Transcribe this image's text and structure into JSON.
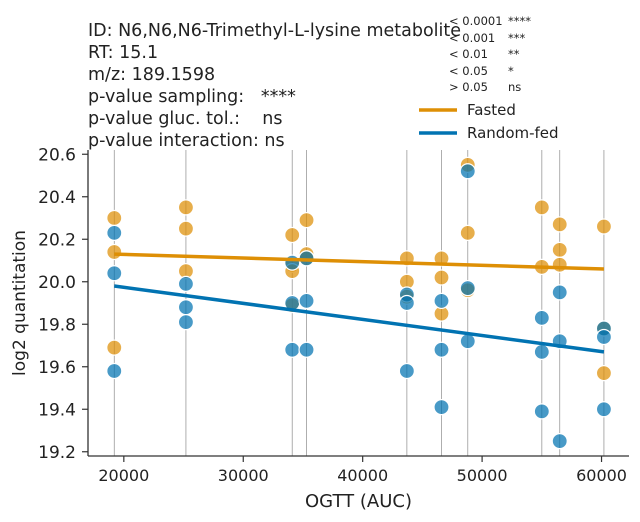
{
  "chart_data": {
    "type": "scatter",
    "info_lines": [
      "ID: N6,N6,N6-Trimethyl-L-lysine metabolite",
      "RT: 15.1",
      "m/z: 189.1598",
      "p-value sampling:   ****",
      "p-value gluc. tol.:    ns",
      "p-value interaction: ns"
    ],
    "pvalue_legend": [
      {
        "threshold": "< 0.0001",
        "stars": "****"
      },
      {
        "threshold": "< 0.001",
        "stars": "***"
      },
      {
        "threshold": "< 0.01",
        "stars": "**"
      },
      {
        "threshold": "< 0.05",
        "stars": "*"
      },
      {
        "threshold": "> 0.05",
        "stars": "ns"
      }
    ],
    "xlabel": "OGTT (AUC)",
    "ylabel": "log2 quantitation",
    "xlim": [
      17000,
      62300
    ],
    "ylim": [
      19.18,
      20.62
    ],
    "xticks": [
      20000,
      30000,
      40000,
      50000,
      60000
    ],
    "yticks": [
      19.2,
      19.4,
      19.6,
      19.8,
      20.0,
      20.2,
      20.4,
      20.6
    ],
    "ytick_labels": [
      "19.2",
      "19.4",
      "19.6",
      "19.8",
      "20.0",
      "20.2",
      "20.4",
      "20.6"
    ],
    "vlines": [
      19200,
      25200,
      34100,
      35300,
      43700,
      46600,
      48800,
      55000,
      56500,
      60200
    ],
    "series": [
      {
        "name": "Fasted",
        "color": "#de8f05",
        "points": [
          [
            19200,
            20.3
          ],
          [
            19200,
            20.14
          ],
          [
            19200,
            19.69
          ],
          [
            25200,
            20.35
          ],
          [
            25200,
            20.25
          ],
          [
            25200,
            20.05
          ],
          [
            34100,
            20.22
          ],
          [
            34100,
            20.08
          ],
          [
            34100,
            20.05
          ],
          [
            34100,
            19.89
          ],
          [
            35300,
            20.29
          ],
          [
            35300,
            20.13
          ],
          [
            35300,
            20.11
          ],
          [
            43700,
            20.11
          ],
          [
            43700,
            20.0
          ],
          [
            43700,
            19.93
          ],
          [
            46600,
            20.11
          ],
          [
            46600,
            20.02
          ],
          [
            46600,
            19.85
          ],
          [
            48800,
            20.55
          ],
          [
            48800,
            20.23
          ],
          [
            48800,
            19.96
          ],
          [
            55000,
            20.35
          ],
          [
            55000,
            20.07
          ],
          [
            56500,
            20.27
          ],
          [
            56500,
            20.15
          ],
          [
            56500,
            20.08
          ],
          [
            60200,
            20.26
          ],
          [
            60200,
            19.78
          ],
          [
            60200,
            19.57
          ]
        ],
        "fit": [
          [
            19200,
            20.13
          ],
          [
            60200,
            20.06
          ]
        ]
      },
      {
        "name": "Random-fed",
        "color": "#0173b2",
        "points": [
          [
            19200,
            20.23
          ],
          [
            19200,
            20.04
          ],
          [
            19200,
            19.58
          ],
          [
            25200,
            19.99
          ],
          [
            25200,
            19.88
          ],
          [
            25200,
            19.81
          ],
          [
            34100,
            20.09
          ],
          [
            34100,
            19.9
          ],
          [
            34100,
            19.68
          ],
          [
            35300,
            20.11
          ],
          [
            35300,
            19.91
          ],
          [
            35300,
            19.68
          ],
          [
            43700,
            19.94
          ],
          [
            43700,
            19.9
          ],
          [
            43700,
            19.58
          ],
          [
            46600,
            19.91
          ],
          [
            46600,
            19.68
          ],
          [
            46600,
            19.41
          ],
          [
            48800,
            20.52
          ],
          [
            48800,
            19.97
          ],
          [
            48800,
            19.72
          ],
          [
            55000,
            19.83
          ],
          [
            55000,
            19.67
          ],
          [
            55000,
            19.39
          ],
          [
            56500,
            19.95
          ],
          [
            56500,
            19.72
          ],
          [
            56500,
            19.25
          ],
          [
            60200,
            19.78
          ],
          [
            60200,
            19.74
          ],
          [
            60200,
            19.4
          ]
        ],
        "fit": [
          [
            19200,
            19.98
          ],
          [
            60200,
            19.67
          ]
        ]
      }
    ],
    "legend_position": "top-right",
    "grid": false
  }
}
